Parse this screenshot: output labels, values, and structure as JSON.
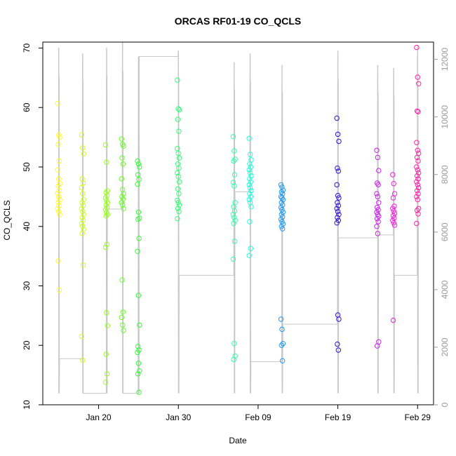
{
  "chart_data": {
    "type": "scatter",
    "title": "ORCAS RF01-19 CO_QCLS",
    "xlabel": "Date",
    "ylabel": "CO_QCLS",
    "xlim": [
      "2016-01-13",
      "2016-03-02"
    ],
    "ylim": [
      10,
      71
    ],
    "y2lim": [
      0,
      12600
    ],
    "x_ticks": [
      {
        "label": "Jan 20",
        "date": "2016-01-20"
      },
      {
        "label": "Jan 30",
        "date": "2016-01-30"
      },
      {
        "label": "Feb 09",
        "date": "2016-02-09"
      },
      {
        "label": "Feb 19",
        "date": "2016-02-19"
      },
      {
        "label": "Feb 29",
        "date": "2016-02-29"
      }
    ],
    "y_ticks": [
      10,
      20,
      30,
      40,
      50,
      60,
      70
    ],
    "y2_ticks": [
      0,
      2000,
      4000,
      6000,
      8000,
      10000,
      12000
    ],
    "grid": false,
    "secondary_series": {
      "type": "line",
      "color": "#c8c8c8",
      "flights": [
        {
          "date": "2016-01-15",
          "low": 400,
          "high": 12400,
          "start": 12400,
          "end": 1600
        },
        {
          "date": "2016-01-18",
          "low": 400,
          "high": 12200,
          "start": 1600,
          "end": 400
        },
        {
          "date": "2016-01-21",
          "low": 400,
          "high": 12400,
          "start": 400,
          "end": 6800
        },
        {
          "date": "2016-01-23",
          "low": 400,
          "high": 12600,
          "start": 6800,
          "end": 400
        },
        {
          "date": "2016-01-25",
          "low": 400,
          "high": 12100,
          "start": 400,
          "end": 12100
        },
        {
          "date": "2016-01-30",
          "low": 400,
          "high": 12300,
          "start": 12100,
          "end": 4500
        },
        {
          "date": "2016-02-06",
          "low": 400,
          "high": 11900,
          "start": 4500,
          "end": 7400
        },
        {
          "date": "2016-02-08",
          "low": 400,
          "high": 12200,
          "start": 7400,
          "end": 1500
        },
        {
          "date": "2016-02-12",
          "low": 400,
          "high": 11800,
          "start": 1500,
          "end": 2800
        },
        {
          "date": "2016-02-19",
          "low": 400,
          "high": 12300,
          "start": 2800,
          "end": 5800
        },
        {
          "date": "2016-02-24",
          "low": 400,
          "high": 11800,
          "start": 5800,
          "end": 5900
        },
        {
          "date": "2016-02-26",
          "low": 400,
          "high": 11700,
          "start": 5900,
          "end": 4500
        },
        {
          "date": "2016-02-29",
          "low": 400,
          "high": 12500,
          "start": 4500,
          "end": 6200
        }
      ]
    },
    "series": [
      {
        "date": "2016-01-15",
        "color": "#ffff22",
        "values": [
          60.7,
          55.4,
          55.0,
          53.8,
          51.0,
          49.5,
          48.0,
          47.2,
          46.8,
          46.0,
          45.6,
          45.0,
          44.5,
          44.0,
          43.5,
          43.0,
          42.5,
          42.0,
          34.2,
          29.3
        ]
      },
      {
        "date": "2016-01-18",
        "color": "#ccff22",
        "values": [
          55.4,
          53.2,
          52.2,
          48.0,
          47.3,
          46.5,
          45.5,
          44.5,
          44.0,
          43.5,
          43.0,
          42.5,
          42.0,
          41.5,
          41.0,
          40.5,
          40.0,
          39.5,
          38.8,
          33.5,
          21.5,
          17.5
        ]
      },
      {
        "date": "2016-01-21",
        "color": "#99ff22",
        "values": [
          53.7,
          50.8,
          46.0,
          45.7,
          45.2,
          44.8,
          44.4,
          44.0,
          43.6,
          43.2,
          42.8,
          42.4,
          42.0,
          41.8,
          37.0,
          36.5,
          25.5,
          23.3,
          18.5,
          15.2,
          13.8
        ]
      },
      {
        "date": "2016-01-23",
        "color": "#66ff22",
        "values": [
          54.7,
          53.8,
          53.5,
          51.5,
          50.5,
          48.0,
          46.2,
          45.5,
          45.0,
          44.6,
          44.0,
          43.6,
          43.0,
          31.0,
          25.6,
          24.7,
          23.4,
          22.5
        ]
      },
      {
        "date": "2016-01-25",
        "color": "#33ff33",
        "values": [
          51.0,
          50.5,
          50.0,
          48.7,
          47.9,
          47.1,
          42.4,
          41.4,
          41.2,
          38.0,
          35.8,
          28.4,
          23.4,
          19.8,
          19.2,
          18.8,
          17.0,
          15.7,
          15.2,
          12.1
        ]
      },
      {
        "date": "2016-01-30",
        "color": "#33ff77",
        "values": [
          64.6,
          59.8,
          59.6,
          58.0,
          56.0,
          53.1,
          52.3,
          51.5,
          50.5,
          49.8,
          49.0,
          48.4,
          47.5,
          46.3,
          45.5,
          44.4,
          44.0,
          43.6,
          43.0,
          42.5,
          41.3
        ]
      },
      {
        "date": "2016-02-06",
        "color": "#33ffaa",
        "values": [
          55.1,
          52.7,
          51.3,
          51.0,
          48.7,
          47.4,
          46.8,
          44.0,
          43.3,
          42.6,
          42.0,
          41.5,
          41.0,
          40.5,
          37.5,
          34.5,
          20.3,
          18.2,
          17.6
        ]
      },
      {
        "date": "2016-02-08",
        "color": "#22ffdd",
        "values": [
          54.8,
          52.1,
          51.2,
          50.5,
          50.0,
          49.5,
          49.0,
          48.5,
          48.0,
          47.5,
          47.0,
          46.5,
          46.0,
          45.5,
          45.0,
          44.5,
          44.0,
          43.3,
          40.8,
          36.3,
          35.1
        ]
      },
      {
        "date": "2016-02-12",
        "color": "#2299ee",
        "values": [
          47.0,
          46.6,
          46.1,
          45.8,
          45.5,
          45.0,
          44.8,
          44.5,
          44.0,
          43.6,
          43.2,
          42.8,
          42.4,
          42.0,
          41.6,
          41.2,
          40.8,
          40.4,
          40.0,
          39.6,
          24.4,
          22.7,
          20.3,
          20.0,
          17.4
        ]
      },
      {
        "date": "2016-02-19",
        "color": "#3311dd",
        "values": [
          58.2,
          55.5,
          54.3,
          49.8,
          49.3,
          47.0,
          45.2,
          44.8,
          44.0,
          43.5,
          43.0,
          42.5,
          42.0,
          41.5,
          41.0,
          40.6,
          25.1,
          24.4,
          20.2,
          19.2
        ]
      },
      {
        "date": "2016-02-24",
        "color": "#cc22ee",
        "values": [
          52.8,
          51.6,
          49.4,
          47.3,
          47.0,
          45.5,
          45.0,
          44.0,
          43.2,
          42.8,
          42.4,
          42.0,
          41.7,
          41.3,
          40.8,
          40.0,
          38.8,
          20.6,
          19.9
        ]
      },
      {
        "date": "2016-02-26",
        "color": "#ee22dd",
        "values": [
          48.7,
          47.2,
          45.5,
          44.8,
          43.4,
          43.0,
          42.6,
          42.2,
          41.8,
          41.4,
          41.0,
          40.6,
          40.2,
          24.2
        ]
      },
      {
        "date": "2016-02-29",
        "color": "#ff22aa",
        "values": [
          70.1,
          65.1,
          64.0,
          59.4,
          59.3,
          54.1,
          52.8,
          52.3,
          51.6,
          51.0,
          50.0,
          49.5,
          49.0,
          48.5,
          48.0,
          47.5,
          47.0,
          46.5,
          46.0,
          45.5,
          45.0,
          44.5,
          43.0,
          42.7,
          42.1,
          40.5
        ]
      }
    ]
  }
}
